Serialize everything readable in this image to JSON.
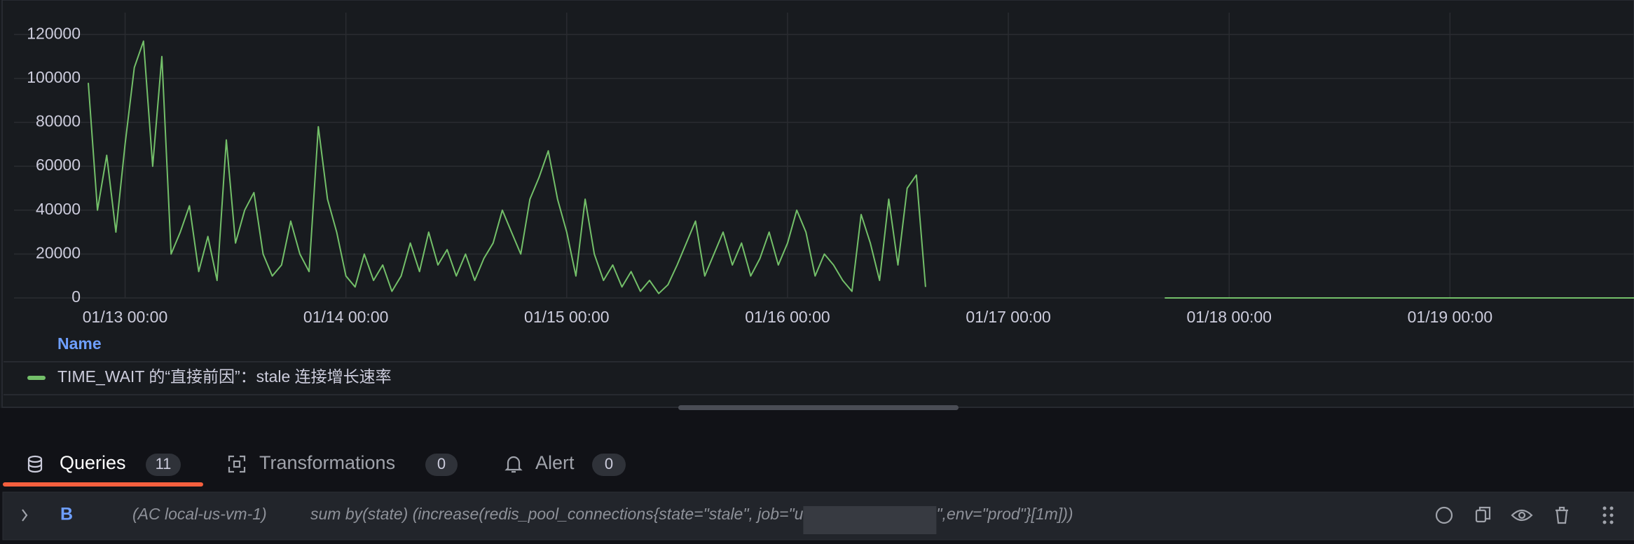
{
  "chart_data": {
    "type": "line",
    "legend_title": "Name",
    "x": [
      "01/12 20:00",
      "01/12 21:00",
      "01/12 22:00",
      "01/12 23:00",
      "01/13 00:00",
      "01/13 01:00",
      "01/13 02:00",
      "01/13 03:00",
      "01/13 04:00",
      "01/13 05:00",
      "01/13 06:00",
      "01/13 07:00",
      "01/13 08:00",
      "01/13 09:00",
      "01/13 10:00",
      "01/13 11:00",
      "01/13 12:00",
      "01/13 13:00",
      "01/13 14:00",
      "01/13 15:00",
      "01/13 16:00",
      "01/13 17:00",
      "01/13 18:00",
      "01/13 19:00",
      "01/13 20:00",
      "01/13 21:00",
      "01/13 22:00",
      "01/13 23:00",
      "01/14 00:00",
      "01/14 01:00",
      "01/14 02:00",
      "01/14 03:00",
      "01/14 04:00",
      "01/14 05:00",
      "01/14 06:00",
      "01/14 07:00",
      "01/14 08:00",
      "01/14 09:00",
      "01/14 10:00",
      "01/14 11:00",
      "01/14 12:00",
      "01/14 13:00",
      "01/14 14:00",
      "01/14 15:00",
      "01/14 16:00",
      "01/14 17:00",
      "01/14 18:00",
      "01/14 19:00",
      "01/14 20:00",
      "01/14 21:00",
      "01/14 22:00",
      "01/14 23:00",
      "01/15 00:00",
      "01/15 01:00",
      "01/15 02:00",
      "01/15 03:00",
      "01/15 04:00",
      "01/15 05:00",
      "01/15 06:00",
      "01/15 07:00",
      "01/15 08:00",
      "01/15 09:00",
      "01/15 10:00",
      "01/15 11:00",
      "01/15 12:00",
      "01/15 13:00",
      "01/15 14:00",
      "01/15 15:00",
      "01/15 16:00",
      "01/15 17:00",
      "01/15 18:00",
      "01/15 19:00",
      "01/15 20:00",
      "01/15 21:00",
      "01/15 22:00",
      "01/15 23:00",
      "01/16 00:00",
      "01/16 01:00",
      "01/16 02:00",
      "01/16 03:00",
      "01/16 04:00",
      "01/16 05:00",
      "01/16 06:00",
      "01/16 07:00",
      "01/16 08:00",
      "01/16 09:00",
      "01/16 10:00",
      "01/16 11:00",
      "01/16 12:00",
      "01/16 13:00",
      "01/16 14:00",
      "01/16 15:00",
      "01/17 00:00",
      "01/17 17:00",
      "01/18 00:00",
      "01/18 12:00",
      "01/19 00:00",
      "01/19 20:00"
    ],
    "series": [
      {
        "name": "TIME_WAIT 的“直接前因”：stale 连接增长速率",
        "color": "#73bf69",
        "values": [
          98000,
          40000,
          65000,
          30000,
          70000,
          105000,
          117000,
          60000,
          110000,
          20000,
          30000,
          42000,
          12000,
          28000,
          8000,
          72000,
          25000,
          40000,
          48000,
          20000,
          10000,
          15000,
          35000,
          20000,
          12000,
          78000,
          45000,
          30000,
          10000,
          5000,
          20000,
          8000,
          15000,
          3000,
          10000,
          25000,
          12000,
          30000,
          15000,
          22000,
          10000,
          20000,
          8000,
          18000,
          25000,
          40000,
          30000,
          20000,
          45000,
          55000,
          67000,
          45000,
          30000,
          10000,
          45000,
          20000,
          8000,
          15000,
          5000,
          12000,
          3000,
          8000,
          2000,
          6000,
          15000,
          25000,
          35000,
          10000,
          20000,
          30000,
          15000,
          25000,
          10000,
          18000,
          30000,
          15000,
          25000,
          40000,
          30000,
          10000,
          20000,
          15000,
          8000,
          3000,
          38000,
          25000,
          8000,
          45000,
          15000,
          50000,
          56000,
          5000,
          null,
          0,
          0,
          0,
          0,
          0
        ]
      }
    ],
    "xlim": [
      "01/12 20:00",
      "01/19 20:00"
    ],
    "xticks": [
      "01/13 00:00",
      "01/14 00:00",
      "01/15 00:00",
      "01/16 00:00",
      "01/17 00:00",
      "01/18 00:00",
      "01/19 00:00"
    ],
    "ylim": [
      0,
      130000
    ],
    "yticks": [
      0,
      20000,
      40000,
      60000,
      80000,
      100000,
      120000
    ],
    "grid": true
  },
  "ui": {
    "tabs": [
      {
        "label": "Queries",
        "count": "11"
      },
      {
        "label": "Transformations",
        "count": "0"
      },
      {
        "label": "Alert",
        "count": "0"
      }
    ],
    "query": {
      "ref": "B",
      "datasource": "(AC local-us-vm-1)",
      "expr_start": "sum by(state) (increase(redis_pool_connections{state=\"stale\", job=\"u",
      "expr_end": "\",env=\"prod\"}[1m]))"
    }
  }
}
